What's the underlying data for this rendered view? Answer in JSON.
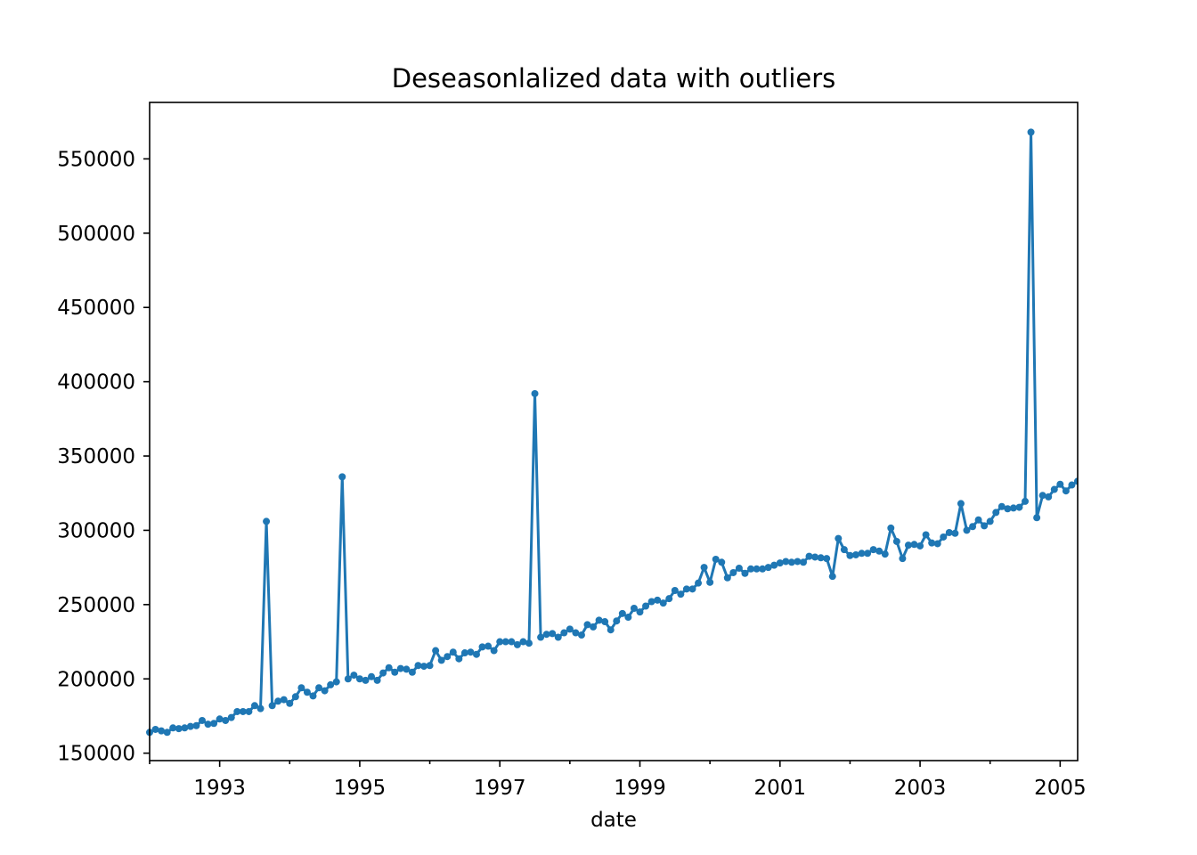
{
  "chart_data": {
    "type": "line",
    "title": "Deseasonlalized data with outliers",
    "xlabel": "date",
    "ylabel": "",
    "x_range": [
      "1992-01",
      "2005-04"
    ],
    "ylim": [
      145000,
      588000
    ],
    "x_ticks": [
      "1993",
      "1995",
      "1997",
      "1999",
      "2001",
      "2003",
      "2005"
    ],
    "y_ticks": [
      "150000",
      "200000",
      "250000",
      "300000",
      "350000",
      "400000",
      "450000",
      "500000",
      "550000"
    ],
    "grid": false,
    "legend": "none",
    "marker": "circle",
    "color": "#1f77b4",
    "series": [
      {
        "start": "1992-01",
        "frequency": "monthly",
        "values": [
          164000,
          166000,
          165000,
          164000,
          167000,
          166500,
          167000,
          168000,
          168500,
          172000,
          169500,
          170000,
          173000,
          172000,
          174000,
          178000,
          178000,
          178000,
          182000,
          180000,
          306000,
          182000,
          185000,
          186000,
          183500,
          188000,
          194000,
          191000,
          188500,
          194000,
          192000,
          196000,
          198000,
          336000,
          200000,
          202500,
          200000,
          199000,
          201500,
          199000,
          204000,
          207500,
          204500,
          207000,
          206500,
          204500,
          209000,
          208500,
          209000,
          219000,
          212500,
          215000,
          218000,
          213500,
          217500,
          218000,
          216500,
          221500,
          222000,
          219000,
          225000,
          225000,
          225000,
          223000,
          225000,
          224000,
          392000,
          228000,
          230000,
          230500,
          228000,
          231000,
          233500,
          231000,
          229500,
          236500,
          235000,
          239500,
          238500,
          233000,
          239000,
          244000,
          241500,
          247500,
          245000,
          249000,
          252000,
          253000,
          251000,
          254000,
          259500,
          257000,
          260500,
          260500,
          264500,
          275000,
          265000,
          280500,
          278500,
          268000,
          271500,
          274500,
          271000,
          274000,
          274000,
          274000,
          275000,
          276500,
          278000,
          279000,
          278500,
          279000,
          278500,
          282500,
          282000,
          281500,
          281000,
          269000,
          294500,
          287000,
          283000,
          283500,
          284500,
          284500,
          287000,
          286000,
          284000,
          301500,
          292500,
          281000,
          290000,
          290500,
          289500,
          297000,
          291500,
          291000,
          295500,
          298500,
          298000,
          318000,
          300000,
          302500,
          307000,
          303000,
          306000,
          312000,
          316000,
          314500,
          315000,
          315500,
          319500,
          568000,
          308500,
          323500,
          322500,
          327500,
          331000,
          326500,
          330500,
          333000
        ]
      }
    ]
  }
}
